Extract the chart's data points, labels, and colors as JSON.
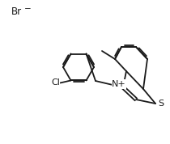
{
  "bg_color": "#ffffff",
  "line_color": "#1a1a1a",
  "text_color": "#1a1a1a",
  "br_label": "Br",
  "br_charge": "−",
  "cl_label": "Cl",
  "n_label": "N",
  "n_charge": "+",
  "s_label": "S",
  "line_width": 1.3,
  "font_size": 7.5,
  "dbl_sep": 1.8
}
